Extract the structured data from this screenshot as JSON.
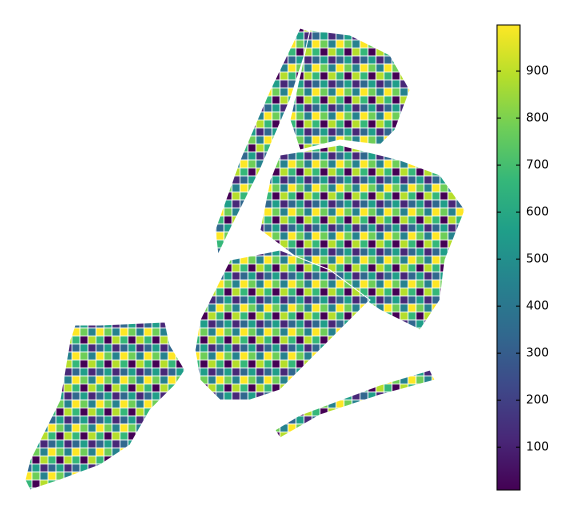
{
  "chart_data": {
    "type": "choropleth",
    "colorbar": {
      "clim": [
        9,
        998
      ],
      "ticks": [
        100,
        200,
        300,
        400,
        500,
        600,
        700,
        800,
        900
      ],
      "colors": [
        "#440154",
        "#482878",
        "#3e4989",
        "#31688e",
        "#26828e",
        "#1f9e89",
        "#35b779",
        "#6ece58",
        "#b5de2b",
        "#fde725"
      ]
    }
  }
}
